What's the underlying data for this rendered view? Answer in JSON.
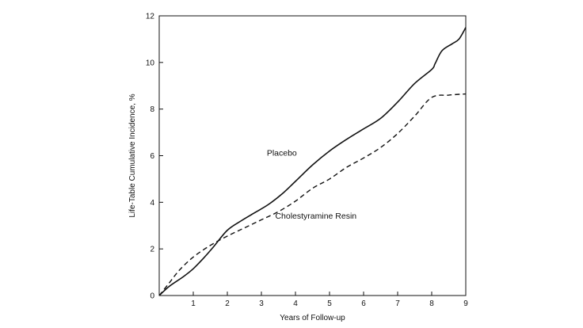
{
  "chart_data": {
    "type": "line",
    "title": "",
    "xlabel": "Years of Follow-up",
    "ylabel": "Life-Table Cumulative Incidence, %",
    "xlim": [
      0,
      9
    ],
    "ylim": [
      0,
      12
    ],
    "xticks": [
      1,
      2,
      3,
      4,
      5,
      6,
      7,
      8,
      9
    ],
    "yticks": [
      0,
      2,
      4,
      6,
      8,
      10,
      12
    ],
    "grid": false,
    "legend": "none",
    "series": [
      {
        "name": "Placebo",
        "style": "solid",
        "x": [
          0,
          0.3,
          0.7,
          1,
          1.3,
          1.6,
          2,
          2.4,
          2.8,
          3.2,
          3.6,
          4,
          4.5,
          5,
          5.5,
          6,
          6.5,
          7,
          7.5,
          8,
          8.1,
          8.3,
          8.6,
          8.8,
          9
        ],
        "y": [
          0,
          0.4,
          0.8,
          1.15,
          1.6,
          2.1,
          2.8,
          3.2,
          3.55,
          3.9,
          4.35,
          4.9,
          5.6,
          6.2,
          6.7,
          7.15,
          7.6,
          8.3,
          9.1,
          9.7,
          9.95,
          10.5,
          10.8,
          11.0,
          11.5
        ],
        "label_at": [
          3.6,
          6.0
        ]
      },
      {
        "name": "Cholestyramine Resin",
        "style": "dashed",
        "x": [
          0,
          0.3,
          0.6,
          1,
          1.5,
          2,
          2.5,
          3,
          3.5,
          4,
          4.5,
          5,
          5.5,
          6,
          6.5,
          7,
          7.5,
          8,
          8.5,
          9
        ],
        "y": [
          0,
          0.55,
          1.1,
          1.65,
          2.15,
          2.55,
          2.9,
          3.25,
          3.6,
          4.05,
          4.6,
          5.0,
          5.5,
          5.9,
          6.35,
          6.95,
          7.7,
          8.5,
          8.6,
          8.65
        ],
        "label_at": [
          4.6,
          3.3
        ]
      }
    ]
  }
}
